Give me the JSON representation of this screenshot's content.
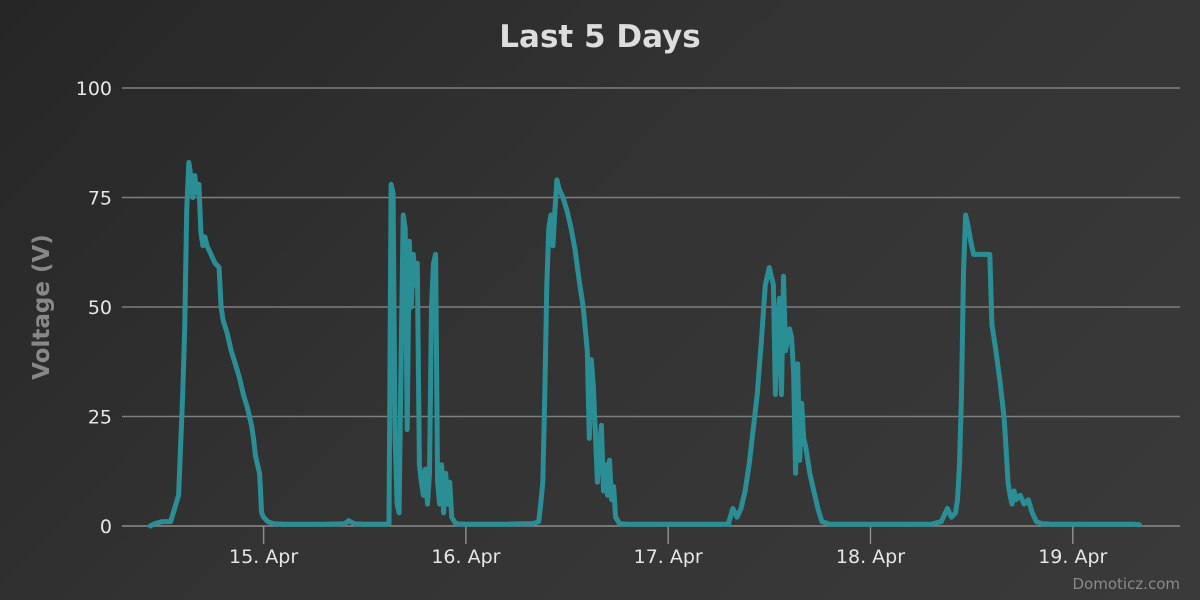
{
  "chart_data": {
    "type": "line",
    "title": "Last 5 Days",
    "xlabel": "",
    "ylabel": "Voltage (V)",
    "ylim": [
      0,
      100
    ],
    "xlim": [
      0.3,
      5.53
    ],
    "yticks": [
      0,
      25,
      50,
      75,
      100
    ],
    "xticks": [
      {
        "label": "15. Apr",
        "value": 1
      },
      {
        "label": "16. Apr",
        "value": 2
      },
      {
        "label": "17. Apr",
        "value": 3
      },
      {
        "label": "18. Apr",
        "value": 4
      },
      {
        "label": "19. Apr",
        "value": 5
      }
    ],
    "x_axis_note": "x values are days; integer n marks the date shown by the matching tick label",
    "grid": true,
    "legend": "none",
    "credit": "Domoticz.com",
    "colors": {
      "series": "#2a8e94",
      "background": "#2f2f2f"
    },
    "series": [
      {
        "name": "",
        "points": [
          [
            0.44,
            0
          ],
          [
            0.46,
            0.5
          ],
          [
            0.5,
            1
          ],
          [
            0.54,
            1
          ],
          [
            0.56,
            4
          ],
          [
            0.58,
            7
          ],
          [
            0.6,
            30
          ],
          [
            0.61,
            45
          ],
          [
            0.62,
            72
          ],
          [
            0.63,
            83
          ],
          [
            0.64,
            80
          ],
          [
            0.65,
            75
          ],
          [
            0.66,
            80
          ],
          [
            0.67,
            76
          ],
          [
            0.68,
            78
          ],
          [
            0.69,
            67
          ],
          [
            0.7,
            64
          ],
          [
            0.71,
            66
          ],
          [
            0.72,
            64
          ],
          [
            0.73,
            63
          ],
          [
            0.74,
            62
          ],
          [
            0.75,
            61
          ],
          [
            0.76,
            60
          ],
          [
            0.78,
            59
          ],
          [
            0.79,
            50
          ],
          [
            0.8,
            47
          ],
          [
            0.82,
            44
          ],
          [
            0.84,
            40
          ],
          [
            0.86,
            37
          ],
          [
            0.88,
            34
          ],
          [
            0.9,
            30
          ],
          [
            0.92,
            27
          ],
          [
            0.94,
            23
          ],
          [
            0.95,
            20
          ],
          [
            0.96,
            16
          ],
          [
            0.97,
            14
          ],
          [
            0.98,
            12
          ],
          [
            0.99,
            3
          ],
          [
            1.0,
            2
          ],
          [
            1.02,
            1
          ],
          [
            1.05,
            0.5
          ],
          [
            1.1,
            0.4
          ],
          [
            1.3,
            0.4
          ],
          [
            1.4,
            0.5
          ],
          [
            1.42,
            1.2
          ],
          [
            1.45,
            0.5
          ],
          [
            1.5,
            0.4
          ],
          [
            1.62,
            0.4
          ],
          [
            1.63,
            78
          ],
          [
            1.64,
            76
          ],
          [
            1.65,
            20
          ],
          [
            1.66,
            5
          ],
          [
            1.67,
            3
          ],
          [
            1.68,
            40
          ],
          [
            1.69,
            71
          ],
          [
            1.7,
            68
          ],
          [
            1.71,
            22
          ],
          [
            1.72,
            65
          ],
          [
            1.73,
            50
          ],
          [
            1.74,
            62
          ],
          [
            1.75,
            55
          ],
          [
            1.76,
            60
          ],
          [
            1.77,
            14
          ],
          [
            1.78,
            10
          ],
          [
            1.79,
            7
          ],
          [
            1.8,
            13
          ],
          [
            1.81,
            5
          ],
          [
            1.82,
            12
          ],
          [
            1.83,
            50
          ],
          [
            1.84,
            60
          ],
          [
            1.85,
            62
          ],
          [
            1.86,
            10
          ],
          [
            1.87,
            5
          ],
          [
            1.88,
            14
          ],
          [
            1.89,
            3
          ],
          [
            1.9,
            12
          ],
          [
            1.91,
            5
          ],
          [
            1.92,
            10
          ],
          [
            1.93,
            2
          ],
          [
            1.95,
            0.5
          ],
          [
            2.0,
            0.4
          ],
          [
            2.2,
            0.4
          ],
          [
            2.28,
            0.5
          ],
          [
            2.33,
            0.5
          ],
          [
            2.36,
            1
          ],
          [
            2.37,
            5
          ],
          [
            2.38,
            10
          ],
          [
            2.39,
            30
          ],
          [
            2.4,
            55
          ],
          [
            2.41,
            68
          ],
          [
            2.42,
            71
          ],
          [
            2.43,
            64
          ],
          [
            2.44,
            72
          ],
          [
            2.45,
            79
          ],
          [
            2.46,
            77
          ],
          [
            2.48,
            75
          ],
          [
            2.5,
            72
          ],
          [
            2.52,
            68
          ],
          [
            2.54,
            63
          ],
          [
            2.56,
            56
          ],
          [
            2.58,
            50
          ],
          [
            2.6,
            40
          ],
          [
            2.61,
            20
          ],
          [
            2.62,
            38
          ],
          [
            2.63,
            32
          ],
          [
            2.64,
            21
          ],
          [
            2.65,
            10
          ],
          [
            2.66,
            18
          ],
          [
            2.67,
            23
          ],
          [
            2.68,
            8
          ],
          [
            2.69,
            14
          ],
          [
            2.7,
            7
          ],
          [
            2.71,
            15
          ],
          [
            2.72,
            6
          ],
          [
            2.73,
            9
          ],
          [
            2.74,
            2
          ],
          [
            2.76,
            0.5
          ],
          [
            2.8,
            0.4
          ],
          [
            3.3,
            0.4
          ],
          [
            3.3,
            1
          ],
          [
            3.32,
            4
          ],
          [
            3.34,
            2
          ],
          [
            3.36,
            4
          ],
          [
            3.38,
            8
          ],
          [
            3.4,
            14
          ],
          [
            3.42,
            22
          ],
          [
            3.44,
            30
          ],
          [
            3.46,
            42
          ],
          [
            3.48,
            55
          ],
          [
            3.5,
            59
          ],
          [
            3.52,
            55
          ],
          [
            3.53,
            30
          ],
          [
            3.54,
            45
          ],
          [
            3.55,
            52
          ],
          [
            3.56,
            30
          ],
          [
            3.57,
            57
          ],
          [
            3.58,
            40
          ],
          [
            3.6,
            45
          ],
          [
            3.61,
            43
          ],
          [
            3.62,
            35
          ],
          [
            3.63,
            12
          ],
          [
            3.64,
            37
          ],
          [
            3.65,
            15
          ],
          [
            3.66,
            28
          ],
          [
            3.67,
            20
          ],
          [
            3.68,
            18
          ],
          [
            3.7,
            12
          ],
          [
            3.72,
            8
          ],
          [
            3.74,
            4
          ],
          [
            3.76,
            1
          ],
          [
            3.8,
            0.4
          ],
          [
            4.3,
            0.4
          ],
          [
            4.35,
            1
          ],
          [
            4.37,
            3
          ],
          [
            4.38,
            4
          ],
          [
            4.4,
            2
          ],
          [
            4.42,
            3
          ],
          [
            4.43,
            6
          ],
          [
            4.44,
            14
          ],
          [
            4.45,
            30
          ],
          [
            4.46,
            58
          ],
          [
            4.47,
            71
          ],
          [
            4.48,
            69
          ],
          [
            4.5,
            64
          ],
          [
            4.51,
            62
          ],
          [
            4.53,
            62
          ],
          [
            4.59,
            62
          ],
          [
            4.6,
            46
          ],
          [
            4.62,
            40
          ],
          [
            4.64,
            33
          ],
          [
            4.66,
            25
          ],
          [
            4.67,
            18
          ],
          [
            4.68,
            10
          ],
          [
            4.69,
            7
          ],
          [
            4.7,
            5
          ],
          [
            4.71,
            8
          ],
          [
            4.72,
            6
          ],
          [
            4.74,
            7
          ],
          [
            4.76,
            5
          ],
          [
            4.78,
            6
          ],
          [
            4.8,
            3
          ],
          [
            4.82,
            1
          ],
          [
            4.85,
            0.5
          ],
          [
            4.9,
            0.4
          ],
          [
            5.3,
            0.4
          ],
          [
            5.33,
            0.3
          ]
        ]
      }
    ]
  }
}
